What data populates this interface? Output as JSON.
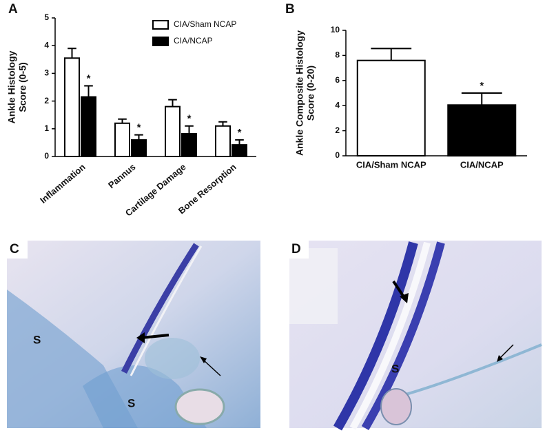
{
  "chart_data": [
    {
      "type": "bar",
      "panel": "A",
      "y_label": [
        "Ankle Histology",
        "Score (0-5)"
      ],
      "categories": [
        "Inflammation",
        "Pannus",
        "Cartilage Damage",
        "Bone Resorption"
      ],
      "series": [
        {
          "name": "CIA/Sham NCAP",
          "color": "#ffffff",
          "values": [
            3.55,
            1.2,
            1.8,
            1.1
          ],
          "errors": [
            0.35,
            0.15,
            0.25,
            0.15
          ]
        },
        {
          "name": "CIA/NCAP",
          "color": "#000000",
          "values": [
            2.15,
            0.6,
            0.82,
            0.42
          ],
          "errors": [
            0.4,
            0.18,
            0.28,
            0.18
          ],
          "value_labels": [
            "*",
            "*",
            "*",
            "*"
          ]
        }
      ],
      "ylim": [
        0,
        5
      ],
      "yticks": [
        0,
        1,
        2,
        3,
        4,
        5
      ],
      "legend": "top-right"
    },
    {
      "type": "bar",
      "panel": "B",
      "y_label": [
        "Ankle Composite Histology",
        "Score (0-20)"
      ],
      "categories": [
        "CIA/Sham NCAP",
        "CIA/NCAP"
      ],
      "series": [
        {
          "colors": [
            "#ffffff",
            "#000000"
          ],
          "values": [
            7.6,
            4.05
          ],
          "errors": [
            0.95,
            0.95
          ],
          "value_labels": [
            null,
            "*"
          ]
        }
      ],
      "ylim": [
        0,
        10
      ],
      "yticks": [
        0,
        2,
        4,
        6,
        8,
        10
      ]
    }
  ],
  "images": [
    {
      "label": "C",
      "markers": [
        "S",
        "S"
      ]
    },
    {
      "label": "D",
      "markers": [
        "S"
      ]
    }
  ]
}
